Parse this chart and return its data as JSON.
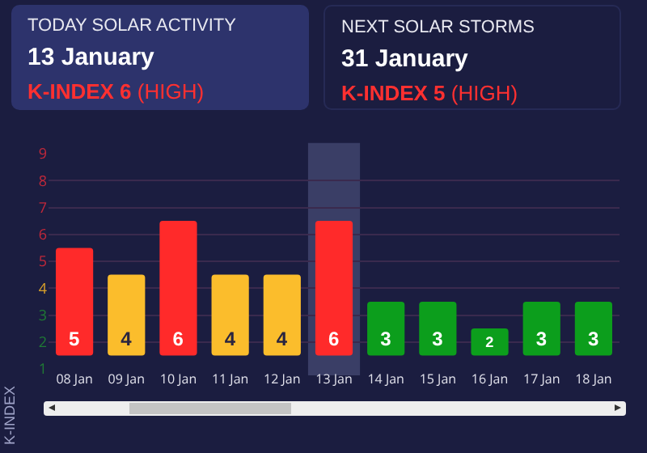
{
  "chart_data": [
    {
      "type": "other",
      "title": "TODAY SOLAR ACTIVITY",
      "subtitle": "13 January",
      "annotations": [
        "K-INDEX 6",
        "(HIGH)"
      ]
    },
    {
      "type": "other",
      "title": "NEXT SOLAR STORMS",
      "subtitle": "31 January",
      "annotations": [
        "K-INDEX 5",
        "(HIGH)"
      ]
    },
    {
      "type": "bar",
      "ylabel": "K-INDEX",
      "categories": [
        "08 Jan",
        "09 Jan",
        "10 Jan",
        "11 Jan",
        "12 Jan",
        "13 Jan",
        "14 Jan",
        "15 Jan",
        "16 Jan",
        "17 Jan",
        "18 Jan"
      ],
      "values": [
        4,
        3,
        5,
        3,
        3,
        5,
        2,
        2,
        1,
        2,
        2
      ],
      "base": [
        1.5,
        1.5,
        1.5,
        1.5,
        1.5,
        1.5,
        1.5,
        1.5,
        1.5,
        1.5,
        1.5
      ],
      "value_labels": [
        "5",
        "4",
        "6",
        "4",
        "4",
        "6",
        "3",
        "3",
        "2",
        "3",
        "3"
      ],
      "colors": [
        "#ff2a2a",
        "#fbbd2c",
        "#ff2a2a",
        "#fbbd2c",
        "#fbbd2c",
        "#ff2a2a",
        "#0c9e1c",
        "#0c9e1c",
        "#0c9e1c",
        "#0c9e1c",
        "#0c9e1c"
      ],
      "ylim": [
        1,
        9
      ],
      "yticks": [
        1,
        2,
        3,
        4,
        5,
        6,
        7,
        8,
        9
      ],
      "bands": [
        {
          "axis": "x",
          "from": "13 Jan",
          "to": "13 Jan",
          "color": "#3a3e66"
        }
      ],
      "grid": "y"
    }
  ]
}
